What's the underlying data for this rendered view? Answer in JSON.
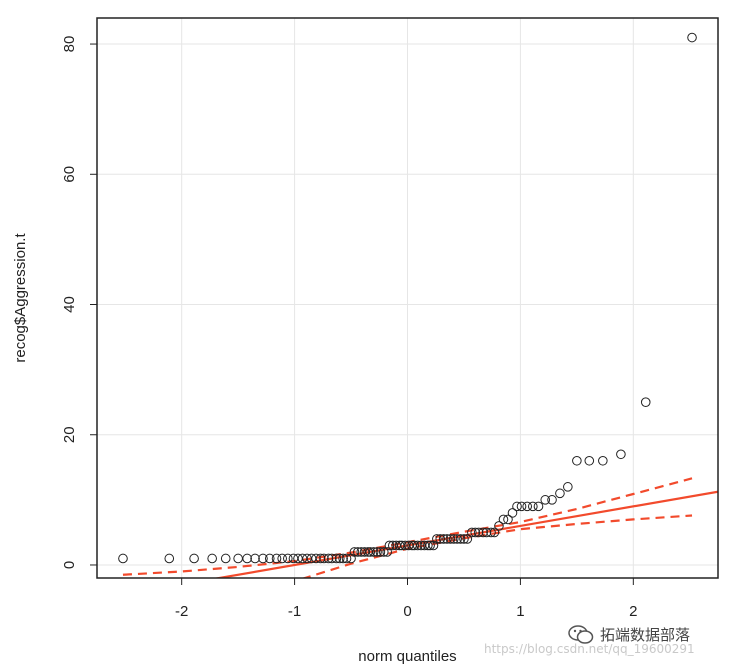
{
  "chart_data": {
    "type": "scatter",
    "title": "",
    "xlabel": "norm quantiles",
    "ylabel": "recog$Aggression.t",
    "xlim": [
      -2.75,
      2.75
    ],
    "ylim": [
      -2,
      84
    ],
    "x_ticks": [
      -2,
      -1,
      0,
      1,
      2
    ],
    "x_tick_labels": [
      "-2",
      "-1",
      "0",
      "1",
      "2"
    ],
    "y_ticks": [
      0,
      20,
      40,
      60,
      80
    ],
    "y_tick_labels": [
      "0",
      "20",
      "40",
      "60",
      "80"
    ],
    "grid": true,
    "points": [
      [
        -2.52,
        1
      ],
      [
        -2.11,
        1
      ],
      [
        -1.89,
        1
      ],
      [
        -1.73,
        1
      ],
      [
        -1.61,
        1
      ],
      [
        -1.5,
        1
      ],
      [
        -1.42,
        1
      ],
      [
        -1.35,
        1
      ],
      [
        -1.28,
        1
      ],
      [
        -1.22,
        1
      ],
      [
        -1.16,
        1
      ],
      [
        -1.11,
        1
      ],
      [
        -1.06,
        1
      ],
      [
        -1.01,
        1
      ],
      [
        -0.97,
        1
      ],
      [
        -0.93,
        1
      ],
      [
        -0.89,
        1
      ],
      [
        -0.85,
        1
      ],
      [
        -0.81,
        1
      ],
      [
        -0.77,
        1
      ],
      [
        -0.74,
        1
      ],
      [
        -0.7,
        1
      ],
      [
        -0.67,
        1
      ],
      [
        -0.63,
        1
      ],
      [
        -0.6,
        1
      ],
      [
        -0.57,
        1
      ],
      [
        -0.54,
        1
      ],
      [
        -0.5,
        1
      ],
      [
        -0.47,
        2
      ],
      [
        -0.44,
        2
      ],
      [
        -0.41,
        2
      ],
      [
        -0.38,
        2
      ],
      [
        -0.35,
        2
      ],
      [
        -0.33,
        2
      ],
      [
        -0.3,
        2
      ],
      [
        -0.27,
        2
      ],
      [
        -0.24,
        2
      ],
      [
        -0.21,
        2
      ],
      [
        -0.18,
        2
      ],
      [
        -0.16,
        3
      ],
      [
        -0.13,
        3
      ],
      [
        -0.1,
        3
      ],
      [
        -0.07,
        3
      ],
      [
        -0.05,
        3
      ],
      [
        -0.02,
        3
      ],
      [
        0.01,
        3
      ],
      [
        0.04,
        3
      ],
      [
        0.06,
        3
      ],
      [
        0.09,
        3
      ],
      [
        0.12,
        3
      ],
      [
        0.15,
        3
      ],
      [
        0.18,
        3
      ],
      [
        0.2,
        3
      ],
      [
        0.23,
        3
      ],
      [
        0.26,
        4
      ],
      [
        0.29,
        4
      ],
      [
        0.32,
        4
      ],
      [
        0.35,
        4
      ],
      [
        0.38,
        4
      ],
      [
        0.41,
        4
      ],
      [
        0.44,
        4
      ],
      [
        0.47,
        4
      ],
      [
        0.5,
        4
      ],
      [
        0.53,
        4
      ],
      [
        0.57,
        5
      ],
      [
        0.6,
        5
      ],
      [
        0.63,
        5
      ],
      [
        0.67,
        5
      ],
      [
        0.7,
        5
      ],
      [
        0.74,
        5
      ],
      [
        0.77,
        5
      ],
      [
        0.81,
        6
      ],
      [
        0.85,
        7
      ],
      [
        0.89,
        7
      ],
      [
        0.93,
        8
      ],
      [
        0.97,
        9
      ],
      [
        1.01,
        9
      ],
      [
        1.06,
        9
      ],
      [
        1.11,
        9
      ],
      [
        1.16,
        9
      ],
      [
        1.22,
        10
      ],
      [
        1.28,
        10
      ],
      [
        1.35,
        11
      ],
      [
        1.42,
        12
      ],
      [
        1.5,
        16
      ],
      [
        1.61,
        16
      ],
      [
        1.73,
        16
      ],
      [
        1.89,
        17
      ],
      [
        2.11,
        25
      ],
      [
        2.52,
        81
      ]
    ],
    "reference_line": {
      "intercept": 3,
      "slope": 3.0
    },
    "confidence_band": {
      "x": [
        -2.52,
        -2.0,
        -1.5,
        -1.0,
        -0.5,
        0.0,
        0.5,
        1.0,
        1.5,
        2.0,
        2.52
      ],
      "upper": [
        -1.5,
        -1.0,
        -0.3,
        0.6,
        1.9,
        3.5,
        5.1,
        6.6,
        8.6,
        10.9,
        13.3
      ],
      "lower": [
        -14.0,
        -9.8,
        -6.1,
        -2.5,
        0.2,
        2.5,
        4.1,
        5.5,
        6.3,
        7.0,
        7.6
      ]
    },
    "colors": {
      "points": "#222222",
      "line": "#f24a2c",
      "grid": "#e6e6e6",
      "axis": "#222222"
    }
  },
  "watermark": {
    "url": "https://blog.csdn.net/qq_19600291",
    "wechat_label": "拓端数据部落",
    "icon": "wechat-icon"
  }
}
